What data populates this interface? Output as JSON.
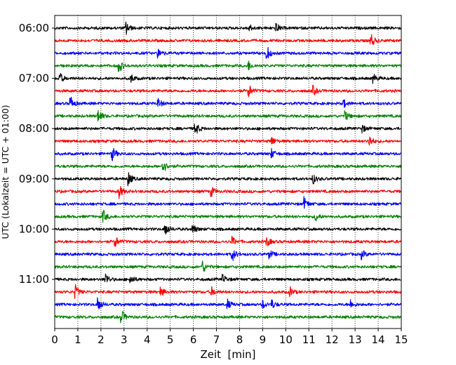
{
  "chart_data": {
    "type": "line",
    "title": "",
    "xlabel": "Zeit  [min]",
    "ylabel": "UTC (Lokalzeit = UTC + 01:00)",
    "xlim": [
      0,
      15
    ],
    "x_ticks": [
      0,
      1,
      2,
      3,
      4,
      5,
      6,
      7,
      8,
      9,
      10,
      11,
      12,
      13,
      14,
      15
    ],
    "grid": "vertical-dotted",
    "trace_interval_minutes": 15,
    "start_time": "06:00",
    "y_tick_labels": [
      "06:00",
      "07:00",
      "08:00",
      "09:00",
      "10:00",
      "11:00"
    ],
    "color_cycle": [
      "#000000",
      "#ff0000",
      "#0000ff",
      "#008000"
    ],
    "series": [
      {
        "row": "06:00",
        "color": "#000000",
        "events_min": [
          3.1,
          8.4,
          9.6
        ]
      },
      {
        "row": "06:15",
        "color": "#ff0000",
        "events_min": [
          13.7
        ]
      },
      {
        "row": "06:30",
        "color": "#0000ff",
        "events_min": [
          9.2,
          4.5
        ]
      },
      {
        "row": "06:45",
        "color": "#008000",
        "events_min": [
          2.8,
          8.4
        ]
      },
      {
        "row": "07:00",
        "color": "#000000",
        "events_min": [
          0.2,
          13.8,
          3.3
        ]
      },
      {
        "row": "07:15",
        "color": "#ff0000",
        "events_min": [
          8.4,
          11.2
        ]
      },
      {
        "row": "07:30",
        "color": "#0000ff",
        "events_min": [
          0.7,
          4.5,
          12.5
        ]
      },
      {
        "row": "07:45",
        "color": "#008000",
        "events_min": [
          1.9,
          12.6
        ]
      },
      {
        "row": "08:00",
        "color": "#000000",
        "events_min": [
          6.1,
          13.3
        ]
      },
      {
        "row": "08:15",
        "color": "#ff0000",
        "events_min": [
          13.6,
          9.4
        ]
      },
      {
        "row": "08:30",
        "color": "#0000ff",
        "events_min": [
          2.5,
          9.4
        ]
      },
      {
        "row": "08:45",
        "color": "#008000",
        "events_min": [
          4.7
        ]
      },
      {
        "row": "09:00",
        "color": "#000000",
        "events_min": [
          3.2,
          11.2
        ]
      },
      {
        "row": "09:15",
        "color": "#ff0000",
        "events_min": [
          2.8,
          6.8
        ]
      },
      {
        "row": "09:30",
        "color": "#0000ff",
        "events_min": [
          10.8
        ]
      },
      {
        "row": "09:45",
        "color": "#008000",
        "events_min": [
          2.1,
          11.3
        ]
      },
      {
        "row": "10:00",
        "color": "#000000",
        "events_min": [
          4.8,
          6.0
        ]
      },
      {
        "row": "10:15",
        "color": "#ff0000",
        "events_min": [
          2.6,
          7.7,
          9.2
        ]
      },
      {
        "row": "10:30",
        "color": "#0000ff",
        "events_min": [
          7.7,
          9.3,
          13.3
        ]
      },
      {
        "row": "10:45",
        "color": "#008000",
        "events_min": [
          6.4
        ]
      },
      {
        "row": "11:00",
        "color": "#000000",
        "events_min": [
          2.2,
          3.3,
          7.3
        ]
      },
      {
        "row": "11:15",
        "color": "#ff0000",
        "events_min": [
          0.9,
          4.6,
          6.8,
          10.2
        ]
      },
      {
        "row": "11:30",
        "color": "#0000ff",
        "events_min": [
          1.9,
          7.5,
          9.0,
          9.4,
          12.8
        ]
      },
      {
        "row": "11:45",
        "color": "#008000",
        "events_min": [
          2.9
        ]
      }
    ]
  }
}
